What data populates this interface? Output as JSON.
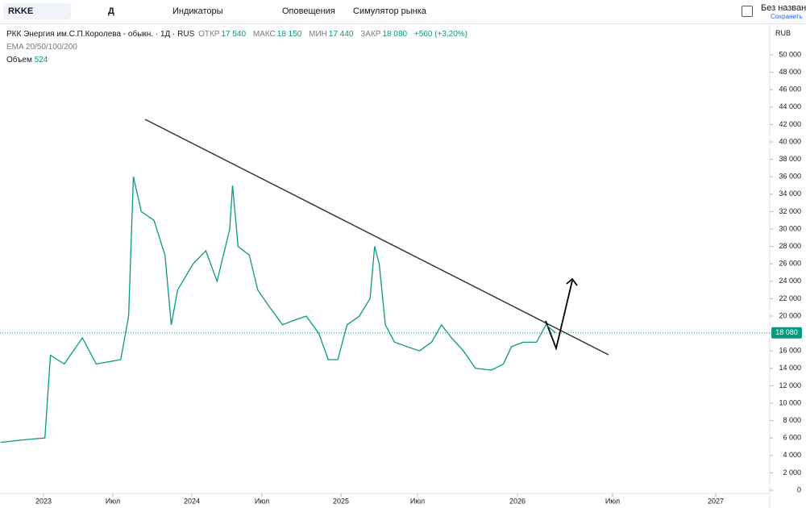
{
  "toolbar": {
    "symbol": "RKKE",
    "interval": "Д",
    "indicators": "Индикаторы",
    "alerts": "Оповещения",
    "replay": "Симулятор рынка",
    "layout_name": "Без названия",
    "save": "Сохранить"
  },
  "legend": {
    "title": "РКК Энергия им.С.П.Королева - обыкн. · 1Д · RUS",
    "open_label": "ОТКР",
    "open": "17 540",
    "high_label": "МАКС",
    "high": "18 150",
    "low_label": "МИН",
    "low": "17 440",
    "close_label": "ЗАКР",
    "close": "18 080",
    "change": "+560 (+3,20%)",
    "ema": "EMA 20/50/100/200",
    "volume_label": "Объем",
    "volume": "524",
    "currency": "RUB"
  },
  "chart_data": {
    "type": "line",
    "color": "#089981",
    "x": [
      2022.69,
      2022.86,
      2023.01,
      2023.05,
      2023.15,
      2023.28,
      2023.38,
      2023.55,
      2023.6,
      2023.63,
      2023.68,
      2023.76,
      2023.83,
      2023.87,
      2023.91,
      2024.01,
      2024.1,
      2024.18,
      2024.27,
      2024.29,
      2024.33,
      2024.41,
      2024.47,
      2024.55,
      2024.63,
      2024.7,
      2024.78,
      2024.86,
      2024.92,
      2024.98,
      2025.04,
      2025.12,
      2025.19,
      2025.22,
      2025.25,
      2025.29,
      2025.35,
      2025.43,
      2025.51,
      2025.57,
      2025.62,
      2025.67,
      2025.73,
      2025.79,
      2025.87,
      2025.93,
      2025.97,
      2026.03,
      2026.1,
      2026.15,
      2026.2
    ],
    "values": [
      5500,
      5800,
      6000,
      15500,
      14500,
      17500,
      14500,
      15000,
      20000,
      36000,
      32000,
      31000,
      27000,
      19000,
      23000,
      26000,
      27500,
      24000,
      30000,
      35000,
      28000,
      27000,
      23000,
      21000,
      19000,
      19500,
      20000,
      18000,
      15000,
      15000,
      19000,
      20000,
      22000,
      28000,
      26000,
      19000,
      17000,
      16500,
      16000,
      17000,
      19000,
      17500,
      16000,
      14000,
      13800,
      14500,
      16500,
      17000,
      17000,
      19000,
      18080
    ],
    "last_price": {
      "value": 18080,
      "label": "18 080"
    },
    "xlim": [
      2022.69,
      2027.26
    ],
    "xticks": [
      {
        "value": 2023,
        "label": "2023"
      },
      {
        "value": 2023.5,
        "label": "Июл"
      },
      {
        "value": 2024,
        "label": "2024"
      },
      {
        "value": 2024.5,
        "label": "Июл"
      },
      {
        "value": 2025,
        "label": "2025"
      },
      {
        "value": 2025.5,
        "label": "Июл"
      },
      {
        "value": 2026,
        "label": "2026"
      },
      {
        "value": 2026.5,
        "label": "Июл"
      },
      {
        "value": 2027,
        "label": "2027"
      }
    ],
    "ylim": [
      0,
      50000
    ],
    "yticks": [
      0,
      {
        "value": 2000,
        "label": "2 000"
      },
      {
        "value": 4000,
        "label": "4 000"
      },
      {
        "value": 6000,
        "label": "6 000"
      },
      {
        "value": 8000,
        "label": "8 000"
      },
      {
        "value": 10000,
        "label": "10 000"
      },
      {
        "value": 12000,
        "label": "12 000"
      },
      {
        "value": 14000,
        "label": "14 000"
      },
      {
        "value": 16000,
        "label": "16 000"
      },
      {
        "value": 18000,
        "label": "18 000"
      },
      {
        "value": 20000,
        "label": "20 000"
      },
      {
        "value": 22000,
        "label": "22 000"
      },
      {
        "value": 24000,
        "label": "24 000"
      },
      {
        "value": 26000,
        "label": "26 000"
      },
      {
        "value": 28000,
        "label": "28 000"
      },
      {
        "value": 30000,
        "label": "30 000"
      },
      {
        "value": 32000,
        "label": "32 000"
      },
      {
        "value": 34000,
        "label": "34 000"
      },
      {
        "value": 36000,
        "label": "36 000"
      },
      {
        "value": 38000,
        "label": "38 000"
      },
      {
        "value": 40000,
        "label": "40 000"
      },
      {
        "value": 42000,
        "label": "42 000"
      },
      {
        "value": 44000,
        "label": "44 000"
      },
      {
        "value": 46000,
        "label": "46 000"
      },
      {
        "value": 48000,
        "label": "48 000"
      },
      {
        "value": 50000,
        "label": "50 000"
      }
    ],
    "grid": false
  }
}
